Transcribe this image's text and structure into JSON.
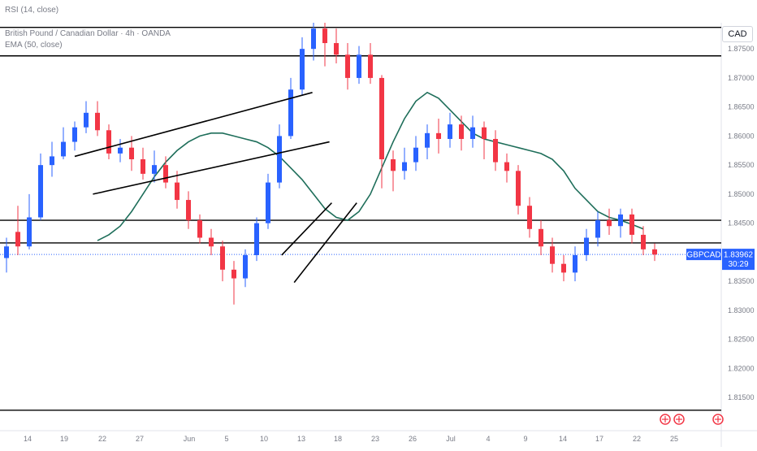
{
  "header": {
    "indicator": "RSI (14, close)",
    "symbol_line": "British Pound / Canadian Dollar · 4h · OANDA",
    "ema_line": "EMA (50, close)",
    "currency": "CAD"
  },
  "price_tag": {
    "symbol": "GBPCAD",
    "price": "1.83962",
    "countdown": "30:29"
  },
  "colors": {
    "up": "#2962ff",
    "down": "#f23645",
    "ema": "#1e6e5a",
    "level": "#000000",
    "last_price": "#2962ff"
  },
  "chart_data": {
    "type": "candlestick",
    "y_ticks": [
      "1.87500",
      "1.87000",
      "1.86500",
      "1.86000",
      "1.85500",
      "1.85000",
      "1.84500",
      "1.84000",
      "1.83500",
      "1.83000",
      "1.82500",
      "1.82000",
      "1.81500"
    ],
    "x_ticks": [
      "14",
      "19",
      "22",
      "27",
      "Jun",
      "5",
      "10",
      "13",
      "18",
      "23",
      "26",
      "Jul",
      "4",
      "9",
      "14",
      "17",
      "22",
      "25"
    ],
    "ylim": [
      1.8118,
      1.8795
    ],
    "last_price": 1.83962,
    "horizontal_levels": [
      1.8787,
      1.8738,
      1.8455,
      1.8416,
      1.8128
    ],
    "channels": [
      {
        "start": [
          6,
          1.8565
        ],
        "end": [
          26.9,
          1.8675
        ]
      },
      {
        "start": [
          7.6,
          1.85
        ],
        "end": [
          28.4,
          1.859
        ]
      },
      {
        "start": [
          24.2,
          1.8395
        ],
        "end": [
          28.6,
          1.8485
        ]
      },
      {
        "start": [
          25.3,
          1.8348
        ],
        "end": [
          30.8,
          1.8485
        ]
      }
    ],
    "candles": [
      [
        1.839,
        1.841,
        1.8365,
        1.8425
      ],
      [
        1.8435,
        1.841,
        1.8395,
        1.848
      ],
      [
        1.841,
        1.846,
        1.8405,
        1.85
      ],
      [
        1.846,
        1.855,
        1.8455,
        1.857
      ],
      [
        1.855,
        1.8565,
        1.853,
        1.859
      ],
      [
        1.8565,
        1.859,
        1.856,
        1.8615
      ],
      [
        1.859,
        1.8615,
        1.8575,
        1.8625
      ],
      [
        1.8615,
        1.864,
        1.8605,
        1.866
      ],
      [
        1.864,
        1.861,
        1.86,
        1.866
      ],
      [
        1.861,
        1.857,
        1.856,
        1.862
      ],
      [
        1.857,
        1.858,
        1.8555,
        1.8595
      ],
      [
        1.858,
        1.856,
        1.854,
        1.86
      ],
      [
        1.856,
        1.8535,
        1.8525,
        1.858
      ],
      [
        1.8535,
        1.855,
        1.852,
        1.8575
      ],
      [
        1.855,
        1.852,
        1.851,
        1.8565
      ],
      [
        1.852,
        1.849,
        1.8475,
        1.854
      ],
      [
        1.849,
        1.8455,
        1.844,
        1.8505
      ],
      [
        1.8455,
        1.8425,
        1.8415,
        1.8465
      ],
      [
        1.8425,
        1.841,
        1.8395,
        1.844
      ],
      [
        1.841,
        1.837,
        1.835,
        1.842
      ],
      [
        1.837,
        1.8355,
        1.831,
        1.8385
      ],
      [
        1.8355,
        1.8395,
        1.834,
        1.8405
      ],
      [
        1.8395,
        1.845,
        1.8385,
        1.846
      ],
      [
        1.845,
        1.852,
        1.844,
        1.8535
      ],
      [
        1.852,
        1.86,
        1.851,
        1.862
      ],
      [
        1.86,
        1.868,
        1.8595,
        1.87
      ],
      [
        1.868,
        1.875,
        1.867,
        1.877
      ],
      [
        1.875,
        1.8785,
        1.873,
        1.8795
      ],
      [
        1.8785,
        1.876,
        1.872,
        1.8795
      ],
      [
        1.876,
        1.874,
        1.8725,
        1.8785
      ],
      [
        1.874,
        1.87,
        1.868,
        1.876
      ],
      [
        1.87,
        1.874,
        1.869,
        1.8755
      ],
      [
        1.874,
        1.87,
        1.869,
        1.876
      ],
      [
        1.87,
        1.856,
        1.851,
        1.8705
      ],
      [
        1.856,
        1.854,
        1.8505,
        1.8575
      ],
      [
        1.854,
        1.8555,
        1.8525,
        1.858
      ],
      [
        1.8555,
        1.858,
        1.854,
        1.86
      ],
      [
        1.858,
        1.8605,
        1.856,
        1.862
      ],
      [
        1.8605,
        1.8595,
        1.857,
        1.863
      ],
      [
        1.8595,
        1.862,
        1.858,
        1.864
      ],
      [
        1.862,
        1.8595,
        1.8575,
        1.8635
      ],
      [
        1.8595,
        1.8615,
        1.858,
        1.8635
      ],
      [
        1.8615,
        1.8595,
        1.856,
        1.8625
      ],
      [
        1.8595,
        1.8555,
        1.854,
        1.861
      ],
      [
        1.8555,
        1.854,
        1.852,
        1.857
      ],
      [
        1.854,
        1.848,
        1.8465,
        1.855
      ],
      [
        1.848,
        1.844,
        1.8425,
        1.8495
      ],
      [
        1.844,
        1.841,
        1.8395,
        1.8455
      ],
      [
        1.841,
        1.838,
        1.8365,
        1.8425
      ],
      [
        1.838,
        1.8365,
        1.835,
        1.8395
      ],
      [
        1.8365,
        1.8395,
        1.835,
        1.841
      ],
      [
        1.8395,
        1.8425,
        1.8385,
        1.844
      ],
      [
        1.8425,
        1.8455,
        1.841,
        1.847
      ],
      [
        1.8455,
        1.8445,
        1.843,
        1.8475
      ],
      [
        1.8445,
        1.8465,
        1.8425,
        1.8475
      ],
      [
        1.8465,
        1.843,
        1.8415,
        1.8475
      ],
      [
        1.843,
        1.8405,
        1.8395,
        1.8445
      ],
      [
        1.8405,
        1.8396,
        1.8385,
        1.8415
      ]
    ],
    "ema": [
      1.842,
      1.843,
      1.8445,
      1.847,
      1.85,
      1.853,
      1.8555,
      1.8575,
      1.859,
      1.86,
      1.8605,
      1.8605,
      1.86,
      1.8595,
      1.859,
      1.858,
      1.8565,
      1.8545,
      1.8525,
      1.85,
      1.8475,
      1.846,
      1.8455,
      1.847,
      1.85,
      1.8545,
      1.859,
      1.863,
      1.866,
      1.8675,
      1.8665,
      1.8645,
      1.8625,
      1.8605,
      1.8595,
      1.859,
      1.8585,
      1.858,
      1.8575,
      1.857,
      1.856,
      1.854,
      1.851,
      1.849,
      1.847,
      1.846,
      1.8455,
      1.8448,
      1.844
    ]
  }
}
